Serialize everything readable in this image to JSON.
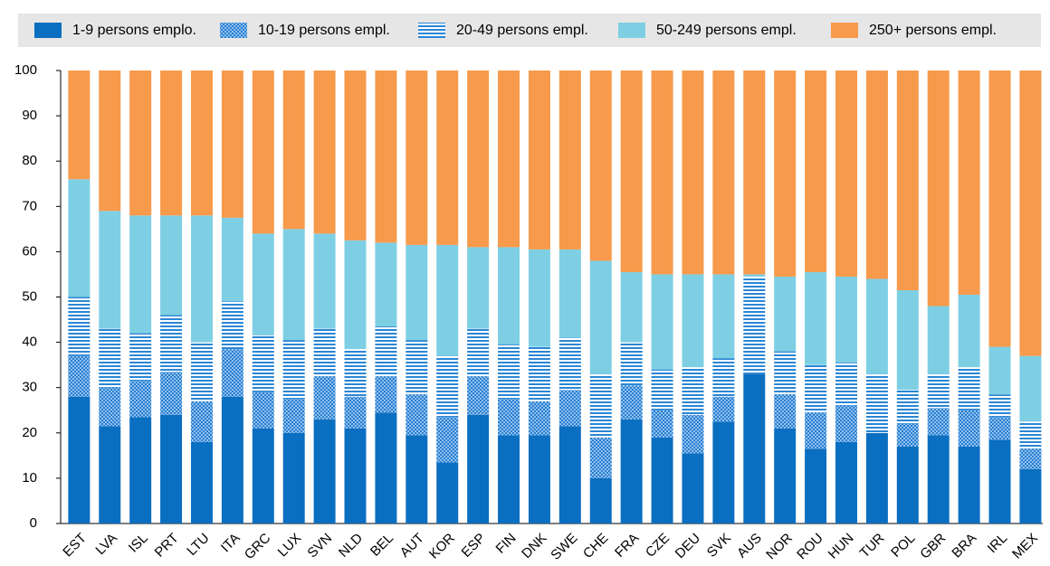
{
  "chart_data": {
    "type": "stacked_bar",
    "categories": [
      "EST",
      "LVA",
      "ISL",
      "PRT",
      "LTU",
      "ITA",
      "GRC",
      "LUX",
      "SVN",
      "NLD",
      "BEL",
      "AUT",
      "KOR",
      "ESP",
      "FIN",
      "DNK",
      "SWE",
      "CHE",
      "FRA",
      "CZE",
      "DEU",
      "SVK",
      "AUS",
      "NOR",
      "ROU",
      "HUN",
      "TUR",
      "POL",
      "GBR",
      "BRA",
      "IRL",
      "MEX"
    ],
    "series": [
      {
        "name": "1-9 persons emplo.",
        "color": "#0b6fc1",
        "pattern": "solid",
        "values": [
          28,
          21.5,
          23.5,
          24,
          18,
          28,
          21,
          20,
          23,
          21,
          24.5,
          19.5,
          13.5,
          24,
          19.5,
          19.5,
          21.5,
          10,
          23,
          19,
          15.5,
          22.5,
          33,
          21,
          16.5,
          18,
          20,
          17,
          19.5,
          17,
          18.5,
          12
        ]
      },
      {
        "name": "10-19 persons empl.",
        "color": "#3f8fd8",
        "pattern": "dots",
        "values": [
          9,
          8.5,
          8,
          9.5,
          9,
          10.5,
          8,
          7.5,
          9.5,
          7,
          8,
          9,
          10,
          8.5,
          8,
          7.5,
          8,
          9,
          7.5,
          6,
          8.5,
          5.5,
          0,
          7.5,
          8,
          8,
          0,
          5,
          6,
          8,
          5,
          4.5
        ]
      },
      {
        "name": "20-49 persons empl.",
        "color": "#2a86d4",
        "pattern": "stripes",
        "values": [
          13,
          13,
          10.5,
          12.5,
          13,
          10.5,
          12.5,
          13,
          10.5,
          10.5,
          11,
          12,
          13.5,
          10.5,
          12,
          12,
          11.5,
          14,
          9.5,
          9,
          10.5,
          8.5,
          21.5,
          9.5,
          10.5,
          9.5,
          13,
          7.5,
          7.5,
          9.5,
          5,
          6
        ]
      },
      {
        "name": "50-249 persons empl.",
        "color": "#7ecfe4",
        "pattern": "solid",
        "values": [
          26,
          26,
          26,
          22,
          28,
          18.5,
          22.5,
          24.5,
          21,
          24,
          18.5,
          21,
          24.5,
          18,
          21.5,
          21.5,
          19.5,
          25,
          15.5,
          21,
          20.5,
          18.5,
          0.5,
          16.5,
          20.5,
          19,
          21,
          22,
          15,
          16,
          10.5,
          14.5
        ]
      },
      {
        "name": "250+ persons empl.",
        "color": "#f79a4b",
        "pattern": "solid",
        "values": [
          24,
          31,
          32,
          32,
          32,
          32.5,
          36,
          35,
          36,
          37.5,
          38,
          38.5,
          38.5,
          39,
          39,
          39.5,
          39.5,
          42,
          44.5,
          45,
          45,
          45,
          45,
          45.5,
          44.5,
          45.5,
          46,
          48.5,
          52,
          49.5,
          61,
          63
        ]
      }
    ],
    "ylim": [
      0,
      100
    ],
    "yticks": [
      0,
      10,
      20,
      30,
      40,
      50,
      60,
      70,
      80,
      90,
      100
    ],
    "grid": false
  }
}
